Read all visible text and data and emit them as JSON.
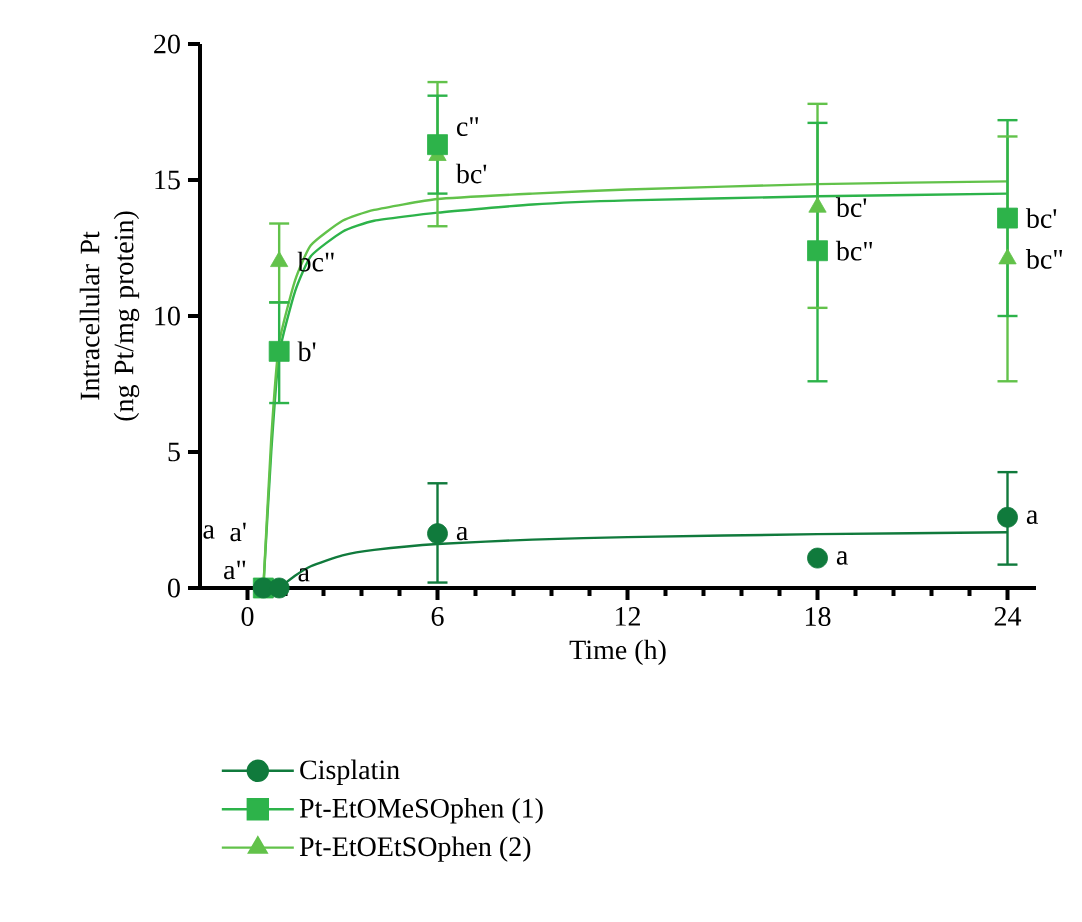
{
  "chart_data": {
    "type": "scatter",
    "xlabel": "Time (h)",
    "ylabel": "Intracellular Pt (ng Pt/mg protein)",
    "xlim": [
      -1.5,
      24.9
    ],
    "ylim": [
      0,
      20
    ],
    "xticks": [
      0,
      6,
      12,
      18,
      24
    ],
    "yticks": [
      0,
      5,
      10,
      15,
      20
    ],
    "grid": false,
    "legend": "bottom",
    "series": [
      {
        "type": "scatter",
        "name": "Cisplatin",
        "color": "#107a3c",
        "marker": "circle",
        "x": [
          0.5,
          1,
          6,
          18,
          24
        ],
        "values": [
          0,
          0,
          2.0,
          1.1,
          2.6
        ],
        "errors": [
          null,
          null,
          [
            0.2,
            3.85
          ],
          null,
          [
            0.86,
            4.26
          ]
        ]
      },
      {
        "type": "scatter",
        "name": "Pt-EtOMeSOphen (1)",
        "color": "#2db34a",
        "marker": "square",
        "x": [
          0.5,
          1,
          6,
          18,
          24
        ],
        "values": [
          0,
          8.7,
          16.3,
          12.4,
          13.6
        ],
        "errors": [
          null,
          [
            6.8,
            10.5
          ],
          [
            14.5,
            18.1
          ],
          [
            7.6,
            17.1
          ],
          [
            10.0,
            17.2
          ]
        ]
      },
      {
        "type": "scatter",
        "name": "Pt-EtOEtSOphen (2)",
        "color": "#62c24a",
        "marker": "triangle",
        "x": [
          1,
          6,
          18,
          24
        ],
        "values": [
          12.0,
          15.9,
          14.0,
          12.1
        ],
        "errors": [
          [
            10.5,
            13.4
          ],
          [
            13.3,
            18.6
          ],
          [
            10.3,
            17.8
          ],
          [
            7.6,
            16.6
          ]
        ]
      },
      {
        "type": "line",
        "color": "#107a3c",
        "marker": "none",
        "x": [
          1,
          1.5,
          2,
          3,
          4,
          6,
          9,
          12,
          18,
          24
        ],
        "values": [
          0,
          0.45,
          0.8,
          1.2,
          1.4,
          1.62,
          1.78,
          1.87,
          1.98,
          2.05
        ]
      },
      {
        "type": "line",
        "color": "#2db34a",
        "marker": "none",
        "x": [
          0.5,
          0.75,
          1,
          1.5,
          2,
          3,
          4,
          6,
          9,
          12,
          18,
          24
        ],
        "values": [
          0,
          5.0,
          8.6,
          10.9,
          12.2,
          13.1,
          13.5,
          13.8,
          14.1,
          14.25,
          14.4,
          14.5
        ]
      },
      {
        "type": "line",
        "color": "#62c24a",
        "marker": "none",
        "x": [
          0.5,
          0.75,
          1,
          1.5,
          2,
          3,
          4,
          6,
          9,
          12,
          18,
          24
        ],
        "values": [
          0,
          5.5,
          9.0,
          11.3,
          12.6,
          13.5,
          13.9,
          14.3,
          14.5,
          14.65,
          14.85,
          14.95
        ]
      }
    ],
    "annotations": [
      {
        "text": "a\"",
        "x": 0.5,
        "y": 0
      },
      {
        "text": "a'",
        "x": 0.5,
        "y": 0
      },
      {
        "text": "a",
        "x": 0.5,
        "y": 0
      },
      {
        "text": "a",
        "x": 1,
        "y": 0
      },
      {
        "text": "a",
        "x": 6,
        "y": 2.0
      },
      {
        "text": "b'",
        "x": 1,
        "y": 8.7
      },
      {
        "text": "bc\"",
        "x": 1,
        "y": 12.0
      },
      {
        "text": "c\"",
        "x": 6,
        "y": 16.3
      },
      {
        "text": "bc'",
        "x": 6,
        "y": 15.9
      },
      {
        "text": "bc'",
        "x": 18,
        "y": 14.0
      },
      {
        "text": "bc\"",
        "x": 18,
        "y": 12.4
      },
      {
        "text": "a",
        "x": 18,
        "y": 1.1
      },
      {
        "text": "bc'",
        "x": 24,
        "y": 13.6
      },
      {
        "text": "bc\"",
        "x": 24,
        "y": 12.1
      },
      {
        "text": "a",
        "x": 24,
        "y": 2.6
      }
    ]
  }
}
